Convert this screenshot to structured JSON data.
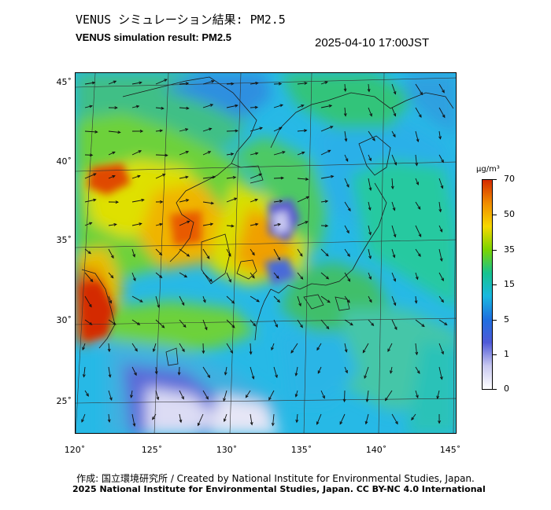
{
  "title_jp": "VENUS シミュレーション結果: PM2.5",
  "title_en": "VENUS simulation result: PM2.5",
  "timestamp": "2025-04-10 17:00JST",
  "latitude_labels": [
    "45˚",
    "40˚",
    "35˚",
    "30˚",
    "25˚"
  ],
  "longitude_labels": [
    "120˚",
    "125˚",
    "130˚",
    "135˚",
    "140˚",
    "145˚"
  ],
  "colorbar": {
    "unit": "µg/m³",
    "ticks": [
      "70",
      "50",
      "35",
      "15",
      "5",
      "1",
      "0"
    ],
    "colors": [
      "#d42a00",
      "#f08c00",
      "#f7d800",
      "#7bd500",
      "#17c38f",
      "#19b8e0",
      "#1e6fe0",
      "#4f5ad8",
      "#c8c8f0",
      "#ffffff"
    ]
  },
  "map_colors": {
    "ocean": "#27b9e6",
    "land": "#4ec964",
    "high": "#e8a000",
    "very_high": "#d42a00",
    "low": "#e6e6f6",
    "coast": "#1b1b1b"
  },
  "credit_line_1": "作成: 国立環境研究所 / Created by National Institute for Environmental Studies, Japan.",
  "credit_line_2": "2025 National Institute for Environmental Studies, Japan. CC BY-NC 4.0 International"
}
